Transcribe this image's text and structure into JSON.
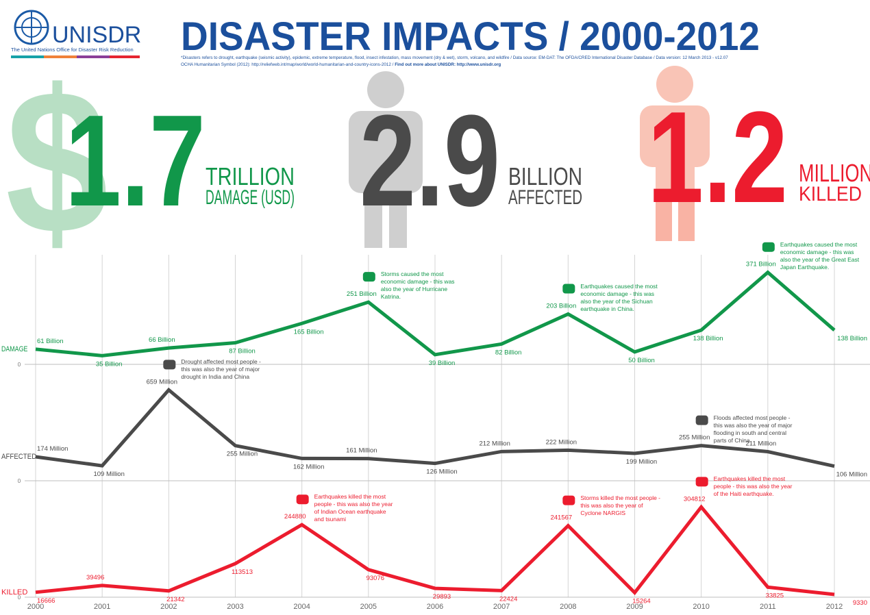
{
  "header": {
    "logo": "UNISDR",
    "org": "The United Nations Office for Disaster Risk Reduction",
    "title": "DISASTER IMPACTS / 2000-2012",
    "note1": "*Disasters refers to drought, earthquake (seismic activity), epidemic, extreme temperature, flood, insect infestation, mass movement (dry & wet), storm, volcano, and wildfire  / Data source: EM-DAT: The OFDA/CRED International Disaster Database / Data version:  12 March 2013 - v12.07",
    "note2": "OCHA Humanitarian Symbol (2012): http://reliefweb.int/map/world/world-humanitarian-and-country-icons-2012 /",
    "note_link": "Find out more about UNISDR: http://www.unisdr.org"
  },
  "stats": [
    {
      "symbol": "$",
      "number": "1.7",
      "unit": "TRILLION",
      "label": "DAMAGE (USD)",
      "color": "#11974a"
    },
    {
      "number": "2.9",
      "unit": "BILLION",
      "label": "AFFECTED",
      "color": "#4a4a4a"
    },
    {
      "number": "1.2",
      "unit": "MILLION",
      "label": "KILLED",
      "color": "#ec1c2e"
    }
  ],
  "chart_data": [
    {
      "type": "line",
      "title": "DAMAGE",
      "color": "#11974a",
      "categories": [
        "2000",
        "2001",
        "2002",
        "2003",
        "2004",
        "2005",
        "2006",
        "2007",
        "2008",
        "2009",
        "2010",
        "2011",
        "2012"
      ],
      "values": [
        61,
        35,
        66,
        87,
        165,
        251,
        39,
        82,
        203,
        50,
        138,
        371,
        138
      ],
      "value_labels": [
        "61 Billion",
        "35 Billion",
        "66 Billion",
        "87 Billion",
        "165 Billion",
        "251 Billion",
        "39 Billion",
        "82 Billion",
        "203 Billion",
        "50 Billion",
        "138 Billion",
        "371 Billion",
        "138 Billion"
      ],
      "ylim": [
        0,
        420
      ],
      "yticks": [
        0
      ],
      "annotations": [
        {
          "category": "2005",
          "text": "Storms caused the most economic damage - this was also the year of Hurricane Katrina."
        },
        {
          "category": "2008",
          "text": "Earthquakes caused the most economic damage - this was also the year of the Sichuan earthquake in China."
        },
        {
          "category": "2011",
          "text": "Earthquakes caused the most economic damage - this was also the year of the Great East Japan Earthquake."
        }
      ]
    },
    {
      "type": "line",
      "title": "AFFECTED",
      "color": "#4a4a4a",
      "categories": [
        "2000",
        "2001",
        "2002",
        "2003",
        "2004",
        "2005",
        "2006",
        "2007",
        "2008",
        "2009",
        "2010",
        "2011",
        "2012"
      ],
      "values": [
        174,
        109,
        659,
        255,
        162,
        161,
        126,
        212,
        222,
        199,
        255,
        211,
        106
      ],
      "value_labels": [
        "174 Million",
        "109 Million",
        "659 Million",
        "255 Million",
        "162 Million",
        "161 Million",
        "126 Million",
        "212 Million",
        "222 Million",
        "199 Million",
        "255 Million",
        "211 Million",
        "106 Million"
      ],
      "ylim": [
        0,
        800
      ],
      "yticks": [
        0
      ],
      "annotations": [
        {
          "category": "2002",
          "text": "Drought affected most people - this was also the year of major drought in India and China"
        },
        {
          "category": "2010",
          "text": "Floods affected most people - this was also the year of major flooding in south and central parts of China"
        }
      ]
    },
    {
      "type": "line",
      "title": "KILLED",
      "color": "#ec1c2e",
      "categories": [
        "2000",
        "2001",
        "2002",
        "2003",
        "2004",
        "2005",
        "2006",
        "2007",
        "2008",
        "2009",
        "2010",
        "2011",
        "2012"
      ],
      "values": [
        16666,
        39496,
        21342,
        113513,
        244880,
        93076,
        29893,
        22424,
        241567,
        15264,
        304812,
        33825,
        9330
      ],
      "ylim": [
        0,
        375000
      ],
      "yticks": [
        0
      ],
      "annotations": [
        {
          "category": "2004",
          "text": "Earthquakes killed the most people - this was also the year of Indian Ocean earthquake and tsunami"
        },
        {
          "category": "2008",
          "text": "Storms killed the most people - this was also the year of Cyclone NARGIS"
        },
        {
          "category": "2010",
          "text": "Earthquakes killed the most people - this was also the year of the Haiti earthquake."
        }
      ]
    }
  ]
}
